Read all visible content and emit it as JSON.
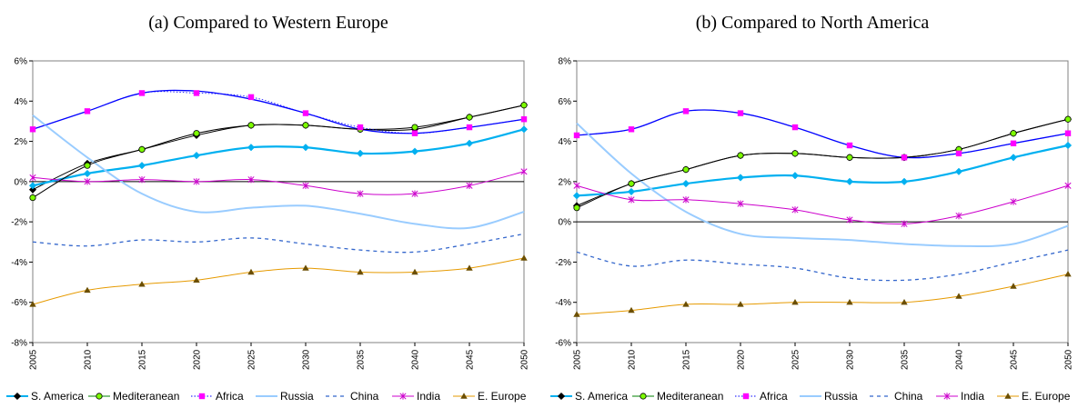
{
  "chart_data": [
    {
      "type": "line",
      "title": "(a)  Compared to Western Europe",
      "x": [
        "2005",
        "2010",
        "2015",
        "2020",
        "2025",
        "2030",
        "2035",
        "2040",
        "2045",
        "2050"
      ],
      "ylim": [
        -8,
        6
      ],
      "yticks": [
        -8,
        -6,
        -4,
        -2,
        0,
        2,
        4,
        6
      ],
      "ytick_labels": [
        "-8%",
        "-6%",
        "-4%",
        "-2%",
        "0%",
        "2%",
        "4%",
        "6%"
      ],
      "grid": false,
      "legend": "bottom",
      "series": [
        {
          "name": "S. America",
          "color": "#000000",
          "marker": "diamond",
          "dash": "solid",
          "width": 1,
          "values": [
            -0.4,
            0.9,
            1.6,
            2.3,
            2.8,
            2.8,
            2.6,
            2.6,
            3.2,
            3.8
          ]
        },
        {
          "name": "Mediteranean",
          "color": "#00B0F0",
          "marker": "diamond",
          "dash": "solid",
          "width": 2.2,
          "values": [
            -0.2,
            0.4,
            0.8,
            1.3,
            1.7,
            1.7,
            1.4,
            1.5,
            1.9,
            2.6
          ]
        },
        {
          "name": "Africa",
          "color": "#0000FF",
          "marker": "none",
          "dash": "solid",
          "width": 1.3,
          "values": [
            2.6,
            3.5,
            4.4,
            4.5,
            4.1,
            3.4,
            2.6,
            2.4,
            2.7,
            3.1
          ]
        },
        {
          "name": "Russia",
          "color": "#99CCFF",
          "marker": "none",
          "dash": "solid",
          "width": 2,
          "values": [
            3.3,
            1.2,
            -0.6,
            -1.5,
            -1.3,
            -1.2,
            -1.6,
            -2.1,
            -2.3,
            -1.5
          ]
        },
        {
          "name": "China",
          "color": "#3366CC",
          "marker": "none",
          "dash": "dashed",
          "width": 1.3,
          "values": [
            -3.0,
            -3.2,
            -2.9,
            -3.0,
            -2.8,
            -3.1,
            -3.4,
            -3.5,
            -3.1,
            -2.6
          ]
        },
        {
          "name": "India",
          "color": "#CC00CC",
          "marker": "star",
          "dash": "solid",
          "width": 1,
          "values": [
            0.2,
            0.0,
            0.1,
            0.0,
            0.1,
            -0.2,
            -0.6,
            -0.6,
            -0.2,
            0.5
          ]
        },
        {
          "name": "E. Europe",
          "color": "#E69A00",
          "marker": "triangle",
          "dash": "solid",
          "width": 1,
          "values": [
            -6.1,
            -5.4,
            -5.1,
            -4.9,
            -4.5,
            -4.3,
            -4.5,
            -4.5,
            -4.3,
            -3.8
          ]
        }
      ],
      "extra_series": [
        {
          "color": "#008000",
          "marker": "circle",
          "values": [
            -0.8,
            0.8,
            1.6,
            2.4,
            2.8,
            2.8,
            2.6,
            2.7,
            3.2,
            3.8
          ]
        },
        {
          "color": "#FF00FF",
          "marker": "square",
          "dotted": true,
          "values": [
            2.6,
            3.5,
            4.4,
            4.4,
            4.2,
            3.4,
            2.7,
            2.4,
            2.7,
            3.1
          ]
        }
      ]
    },
    {
      "type": "line",
      "title": "(b)  Compared to North America",
      "x": [
        "2005",
        "2010",
        "2015",
        "2020",
        "2025",
        "2030",
        "2035",
        "2040",
        "2045",
        "2050"
      ],
      "ylim": [
        -6,
        8
      ],
      "yticks": [
        -6,
        -4,
        -2,
        0,
        2,
        4,
        6,
        8
      ],
      "ytick_labels": [
        "-6%",
        "-4%",
        "-2%",
        "0%",
        "2%",
        "4%",
        "6%",
        "8%"
      ],
      "grid": false,
      "legend": "bottom",
      "series": [
        {
          "name": "S. America",
          "color": "#000000",
          "marker": "diamond",
          "dash": "solid",
          "width": 1,
          "values": [
            0.8,
            1.9,
            2.6,
            3.3,
            3.4,
            3.2,
            3.2,
            3.6,
            4.4,
            5.1
          ]
        },
        {
          "name": "Mediteranean",
          "color": "#00B0F0",
          "marker": "diamond",
          "dash": "solid",
          "width": 2.2,
          "values": [
            1.3,
            1.5,
            1.9,
            2.2,
            2.3,
            2.0,
            2.0,
            2.5,
            3.2,
            3.8
          ]
        },
        {
          "name": "Africa",
          "color": "#0000FF",
          "marker": "none",
          "dash": "solid",
          "width": 1.3,
          "values": [
            4.3,
            4.6,
            5.5,
            5.4,
            4.7,
            3.8,
            3.2,
            3.4,
            3.9,
            4.4
          ]
        },
        {
          "name": "Russia",
          "color": "#99CCFF",
          "marker": "none",
          "dash": "solid",
          "width": 2,
          "values": [
            4.9,
            2.4,
            0.5,
            -0.6,
            -0.8,
            -0.9,
            -1.1,
            -1.2,
            -1.1,
            -0.2
          ]
        },
        {
          "name": "China",
          "color": "#3366CC",
          "marker": "none",
          "dash": "dashed",
          "width": 1.3,
          "values": [
            -1.5,
            -2.2,
            -1.9,
            -2.1,
            -2.3,
            -2.8,
            -2.9,
            -2.6,
            -2.0,
            -1.4
          ]
        },
        {
          "name": "India",
          "color": "#CC00CC",
          "marker": "star",
          "dash": "solid",
          "width": 1,
          "values": [
            1.8,
            1.1,
            1.1,
            0.9,
            0.6,
            0.1,
            -0.1,
            0.3,
            1.0,
            1.8
          ]
        },
        {
          "name": "E. Europe",
          "color": "#E69A00",
          "marker": "triangle",
          "dash": "solid",
          "width": 1,
          "values": [
            -4.6,
            -4.4,
            -4.1,
            -4.1,
            -4.0,
            -4.0,
            -4.0,
            -3.7,
            -3.2,
            -2.6
          ]
        }
      ],
      "extra_series": [
        {
          "color": "#008000",
          "marker": "circle",
          "values": [
            0.7,
            1.9,
            2.6,
            3.3,
            3.4,
            3.2,
            3.2,
            3.6,
            4.4,
            5.1
          ]
        },
        {
          "color": "#FF00FF",
          "marker": "square",
          "dotted": true,
          "values": [
            4.3,
            4.6,
            5.5,
            5.4,
            4.7,
            3.8,
            3.2,
            3.4,
            3.9,
            4.4
          ]
        }
      ]
    }
  ],
  "legend_items": [
    {
      "label": "S. America",
      "color": "#000000",
      "marker": "diamond",
      "line": "#00B0F0",
      "lw": 2
    },
    {
      "label": "Mediteranean",
      "color": "#008000",
      "marker": "circle",
      "line": "#008000",
      "lw": 1
    },
    {
      "label": "Africa",
      "color": "#FF00FF",
      "marker": "square",
      "line": "#0000FF",
      "lw": 1,
      "dotted": true
    },
    {
      "label": "Russia",
      "color": "#99CCFF",
      "marker": "none",
      "line": "#99CCFF",
      "lw": 2
    },
    {
      "label": "China",
      "color": "#3366CC",
      "marker": "none",
      "line": "#3366CC",
      "lw": 1.3,
      "dashed": true
    },
    {
      "label": "India",
      "color": "#CC00CC",
      "marker": "star",
      "line": "#CC00CC",
      "lw": 1
    },
    {
      "label": "E. Europe",
      "color": "#8B6914",
      "marker": "triangle",
      "line": "#E69A00",
      "lw": 1
    }
  ]
}
